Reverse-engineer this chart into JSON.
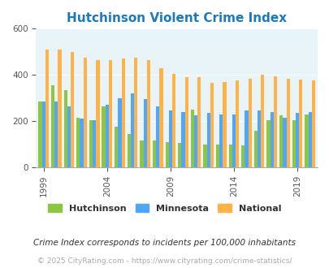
{
  "title": "Hutchinson Violent Crime Index",
  "years": [
    1999,
    2000,
    2001,
    2002,
    2003,
    2004,
    2005,
    2006,
    2007,
    2008,
    2009,
    2010,
    2011,
    2012,
    2013,
    2014,
    2015,
    2016,
    2017,
    2018,
    2019,
    2020
  ],
  "hutchinson": [
    285,
    355,
    335,
    215,
    205,
    265,
    175,
    145,
    115,
    115,
    110,
    105,
    250,
    100,
    100,
    100,
    95,
    160,
    205,
    225,
    205,
    230
  ],
  "minnesota": [
    285,
    285,
    265,
    210,
    205,
    270,
    300,
    320,
    295,
    265,
    245,
    240,
    225,
    235,
    230,
    230,
    245,
    245,
    240,
    215,
    235,
    240
  ],
  "national": [
    510,
    510,
    500,
    475,
    465,
    465,
    470,
    475,
    465,
    430,
    405,
    390,
    390,
    365,
    370,
    375,
    385,
    400,
    395,
    385,
    380,
    375
  ],
  "ylim": [
    0,
    600
  ],
  "yticks": [
    0,
    200,
    400,
    600
  ],
  "hutchinson_color": "#8dc63f",
  "minnesota_color": "#4da6ff",
  "national_color": "#ffb347",
  "bg_color": "#e8f4f8",
  "subtitle": "Crime Index corresponds to incidents per 100,000 inhabitants",
  "footer": "© 2025 CityRating.com - https://www.cityrating.com/crime-statistics/",
  "legend_labels": [
    "Hutchinson",
    "Minnesota",
    "National"
  ],
  "label_years": [
    1999,
    2004,
    2009,
    2014,
    2019
  ]
}
